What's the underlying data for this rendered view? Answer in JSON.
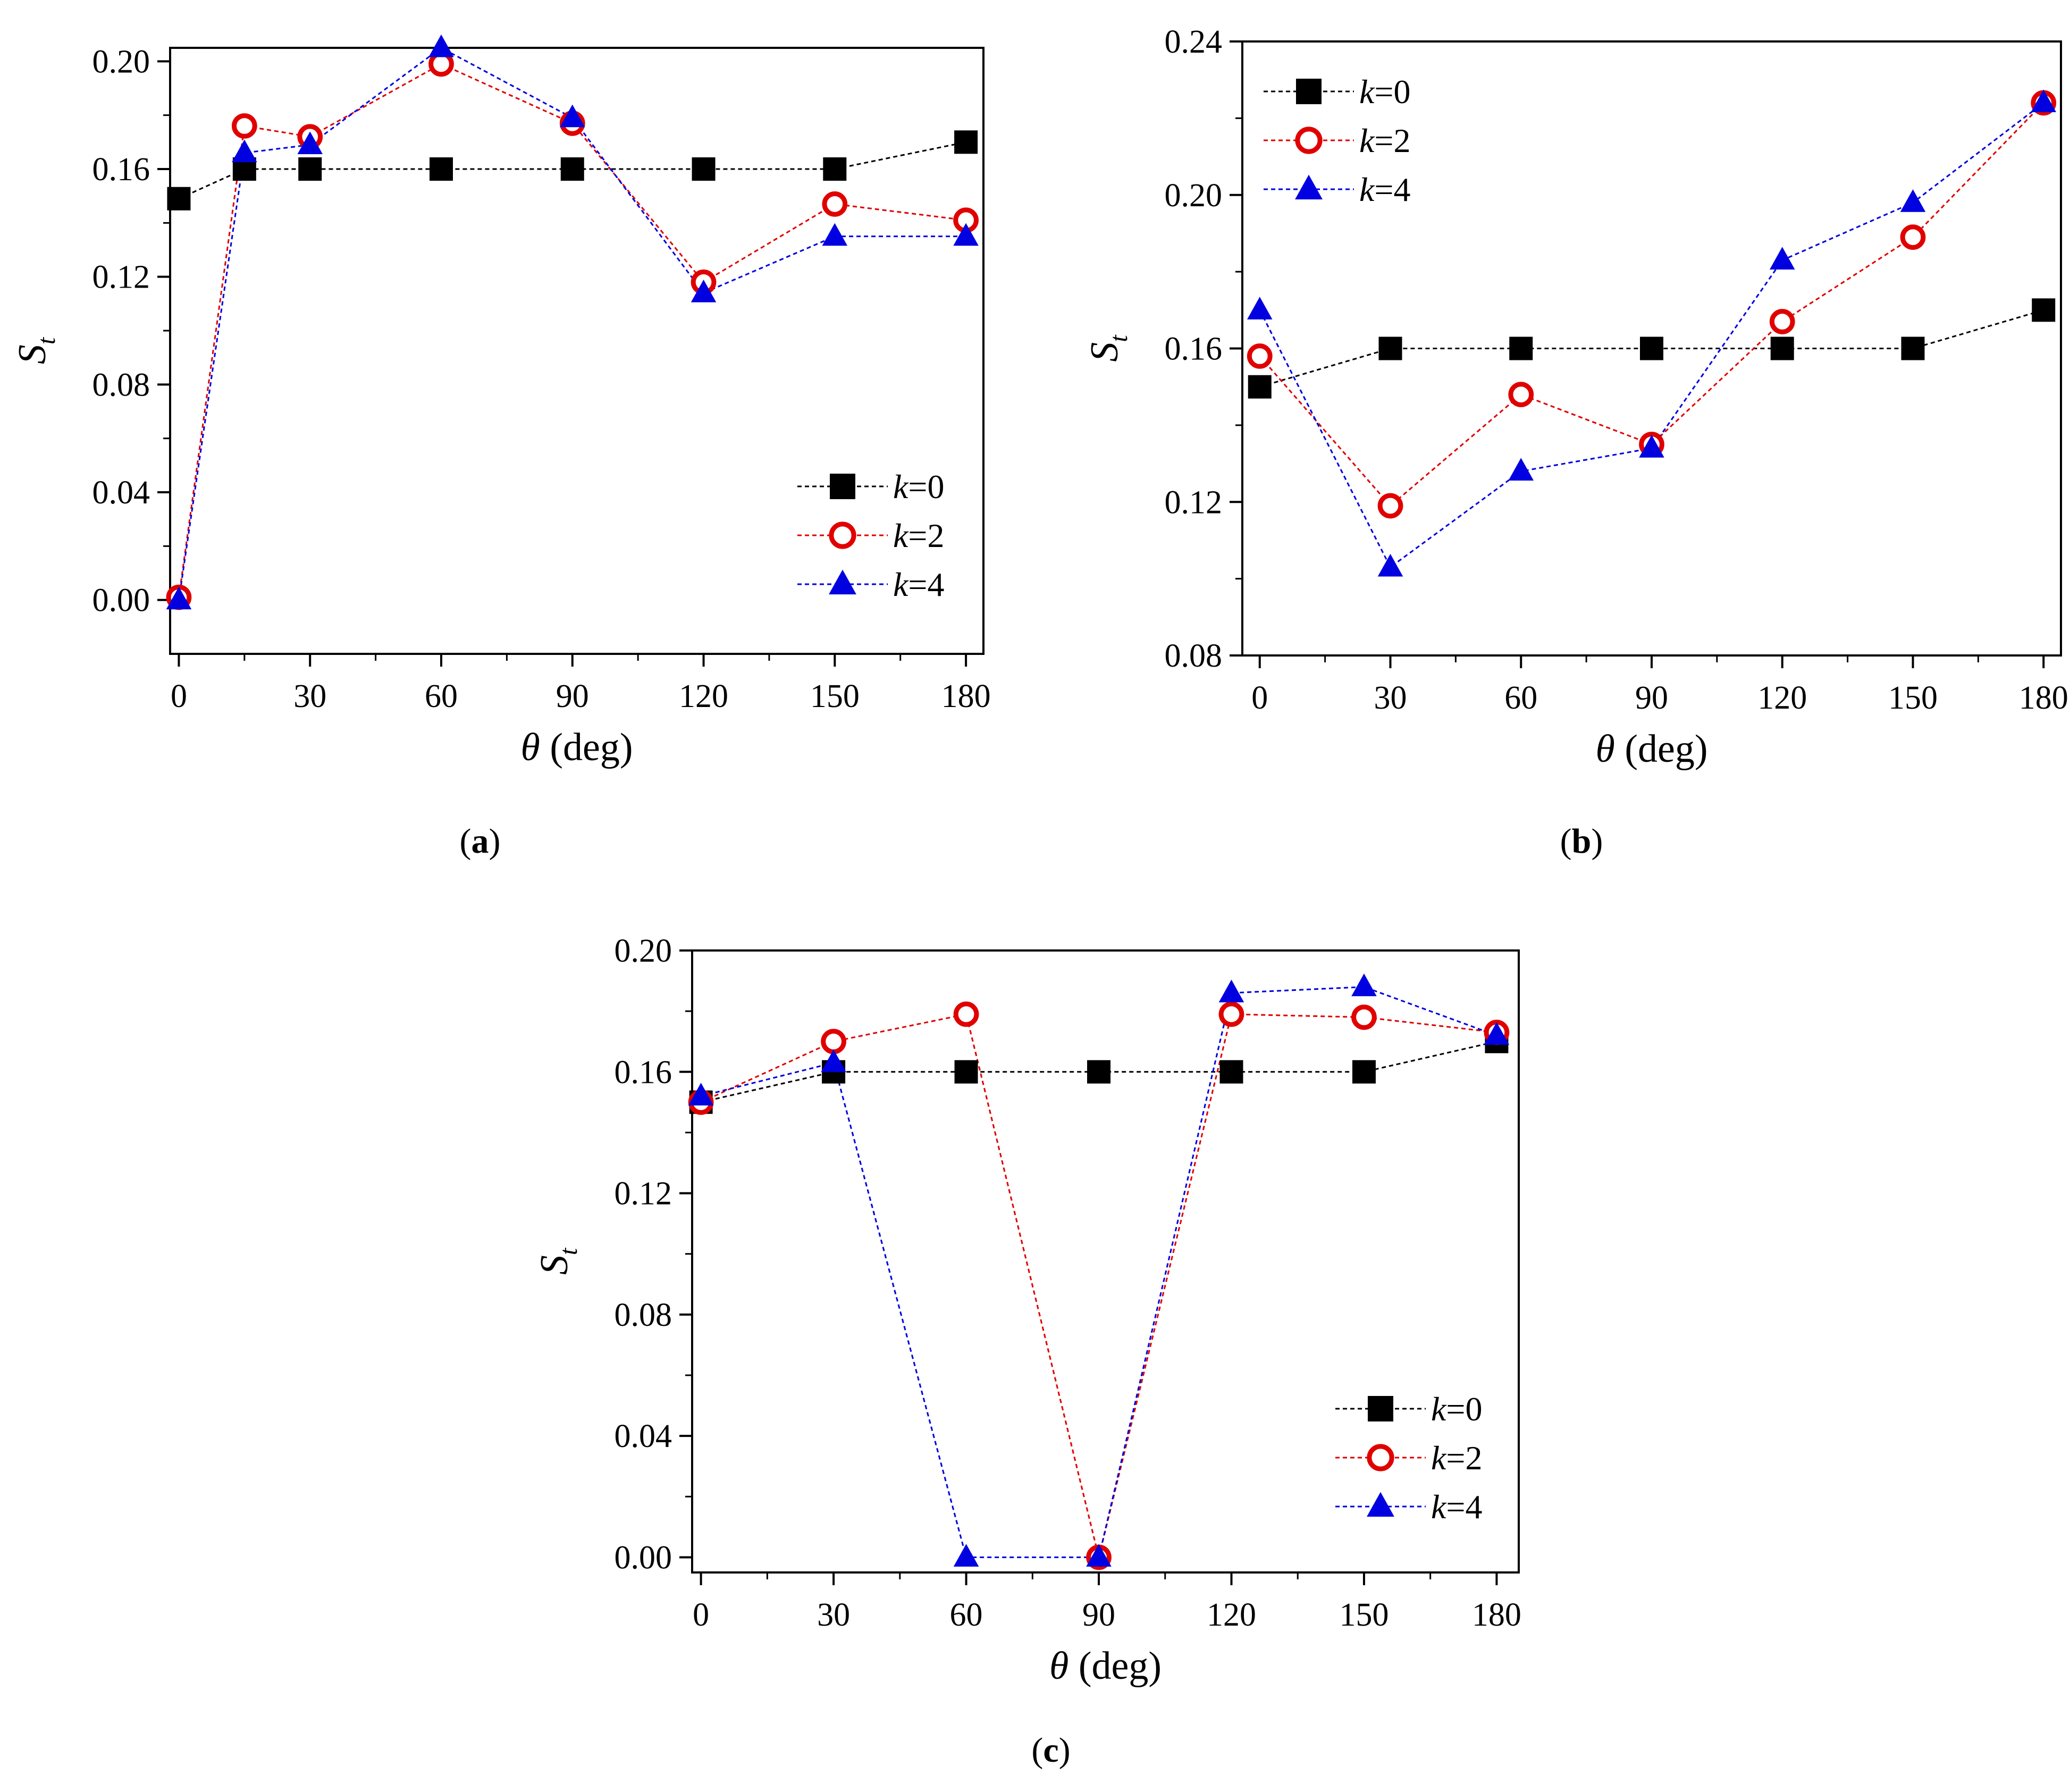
{
  "colors": {
    "k0": "#000000",
    "k2": "#e00000",
    "k4": "#0000e0",
    "axis": "#000000"
  },
  "chart_data": [
    {
      "id": "a",
      "type": "line",
      "caption_letter": "a",
      "xlabel_symbol": "θ",
      "xlabel_unit": "(deg)",
      "ylabel_main": "S",
      "ylabel_sub": "t",
      "xlim": [
        -2,
        184
      ],
      "ylim": [
        -0.02,
        0.205
      ],
      "xticks": [
        0,
        30,
        60,
        90,
        120,
        150,
        180
      ],
      "xtick_labels": [
        "0",
        "30",
        "60",
        "90",
        "120",
        "150",
        "180"
      ],
      "yticks": [
        0.0,
        0.04,
        0.08,
        0.12,
        0.16,
        0.2
      ],
      "ytick_labels": [
        "0.00",
        "0.04",
        "0.08",
        "0.12",
        "0.16",
        "0.20"
      ],
      "legend_position": "bottom-right",
      "series": [
        {
          "name": "k=0",
          "k_letter": "k",
          "k_value": "=0",
          "marker": "square",
          "color": "#000000",
          "x": [
            0,
            15,
            30,
            60,
            90,
            120,
            150,
            180
          ],
          "y": [
            0.149,
            0.16,
            0.16,
            0.16,
            0.16,
            0.16,
            0.16,
            0.17
          ]
        },
        {
          "name": "k=2",
          "k_letter": "k",
          "k_value": "=2",
          "marker": "circle",
          "color": "#e00000",
          "x": [
            0,
            15,
            30,
            60,
            90,
            120,
            150,
            180
          ],
          "y": [
            0.001,
            0.176,
            0.172,
            0.199,
            0.177,
            0.118,
            0.147,
            0.141
          ]
        },
        {
          "name": "k=4",
          "k_letter": "k",
          "k_value": "=4",
          "marker": "triangle",
          "color": "#0000e0",
          "x": [
            0,
            15,
            30,
            60,
            90,
            120,
            150,
            180
          ],
          "y": [
            0.0,
            0.166,
            0.169,
            0.205,
            0.179,
            0.114,
            0.135,
            0.135
          ]
        }
      ]
    },
    {
      "id": "b",
      "type": "line",
      "caption_letter": "b",
      "xlabel_symbol": "θ",
      "xlabel_unit": "(deg)",
      "ylabel_main": "S",
      "ylabel_sub": "t",
      "xlim": [
        -4,
        184
      ],
      "ylim": [
        0.08,
        0.24
      ],
      "xticks": [
        0,
        30,
        60,
        90,
        120,
        150,
        180
      ],
      "xtick_labels": [
        "0",
        "30",
        "60",
        "90",
        "120",
        "150",
        "180"
      ],
      "yticks": [
        0.08,
        0.12,
        0.16,
        0.2,
        0.24
      ],
      "ytick_labels": [
        "0.08",
        "0.12",
        "0.16",
        "0.20",
        "0.24"
      ],
      "legend_position": "top-left",
      "series": [
        {
          "name": "k=0",
          "k_letter": "k",
          "k_value": "=0",
          "marker": "square",
          "color": "#000000",
          "x": [
            0,
            30,
            60,
            90,
            120,
            150,
            180
          ],
          "y": [
            0.15,
            0.16,
            0.16,
            0.16,
            0.16,
            0.16,
            0.17
          ]
        },
        {
          "name": "k=2",
          "k_letter": "k",
          "k_value": "=2",
          "marker": "circle",
          "color": "#e00000",
          "x": [
            0,
            30,
            60,
            90,
            120,
            150,
            180
          ],
          "y": [
            0.158,
            0.119,
            0.148,
            0.135,
            0.167,
            0.189,
            0.224
          ]
        },
        {
          "name": "k=4",
          "k_letter": "k",
          "k_value": "=4",
          "marker": "triangle",
          "color": "#0000e0",
          "x": [
            0,
            30,
            60,
            90,
            120,
            150,
            180
          ],
          "y": [
            0.17,
            0.103,
            0.128,
            0.134,
            0.183,
            0.198,
            0.224
          ]
        }
      ]
    },
    {
      "id": "c",
      "type": "line",
      "caption_letter": "c",
      "xlabel_symbol": "θ",
      "xlabel_unit": "(deg)",
      "ylabel_main": "S",
      "ylabel_sub": "t",
      "xlim": [
        -2,
        185
      ],
      "ylim": [
        -0.005,
        0.2
      ],
      "xticks": [
        0,
        30,
        60,
        90,
        120,
        150,
        180
      ],
      "xtick_labels": [
        "0",
        "30",
        "60",
        "90",
        "120",
        "150",
        "180"
      ],
      "yticks": [
        0.0,
        0.04,
        0.08,
        0.12,
        0.16,
        0.2
      ],
      "ytick_labels": [
        "0.00",
        "0.04",
        "0.08",
        "0.12",
        "0.16",
        "0.20"
      ],
      "legend_position": "bottom-right",
      "series": [
        {
          "name": "k=0",
          "k_letter": "k",
          "k_value": "=0",
          "marker": "square",
          "color": "#000000",
          "x": [
            0,
            30,
            60,
            90,
            120,
            150,
            180
          ],
          "y": [
            0.15,
            0.16,
            0.16,
            0.16,
            0.16,
            0.16,
            0.17
          ]
        },
        {
          "name": "k=2",
          "k_letter": "k",
          "k_value": "=2",
          "marker": "circle",
          "color": "#e00000",
          "x": [
            0,
            30,
            60,
            90,
            120,
            150,
            180
          ],
          "y": [
            0.15,
            0.17,
            0.179,
            0.0,
            0.179,
            0.178,
            0.173
          ]
        },
        {
          "name": "k=4",
          "k_letter": "k",
          "k_value": "=4",
          "marker": "triangle",
          "color": "#0000e0",
          "x": [
            0,
            30,
            60,
            90,
            120,
            150,
            180
          ],
          "y": [
            0.152,
            0.163,
            0.0,
            0.0,
            0.186,
            0.188,
            0.172
          ]
        }
      ]
    }
  ]
}
